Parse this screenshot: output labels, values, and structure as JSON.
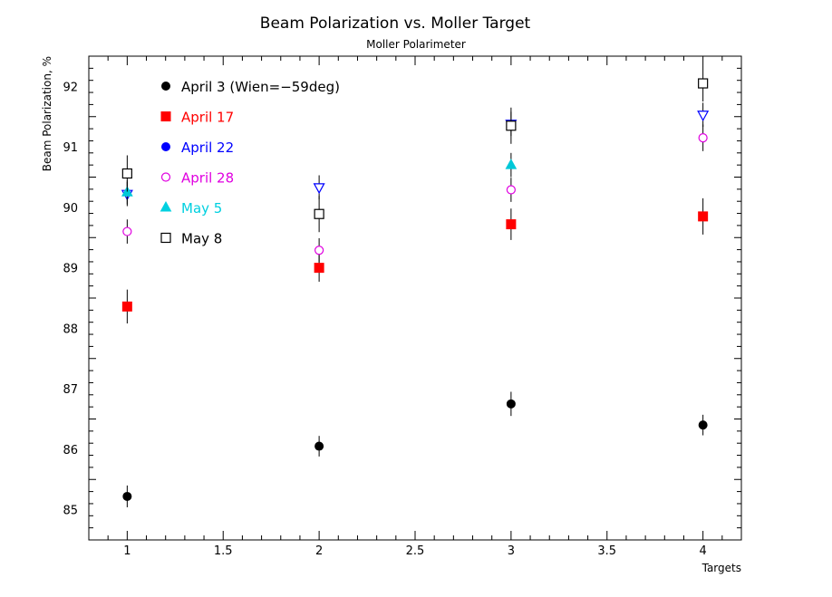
{
  "chart_data": {
    "type": "scatter",
    "title": "Beam Polarization vs. Moller Target",
    "subtitle": "Moller Polarimeter",
    "xlabel": "Targets",
    "ylabel": "Beam Polarization, %",
    "xlim": [
      0.8,
      4.2
    ],
    "ylim": [
      84.5,
      92.5
    ],
    "x_ticks": [
      "1",
      "1.5",
      "2",
      "2.5",
      "3",
      "3.5",
      "4"
    ],
    "x_tick_values": [
      1,
      1.5,
      2,
      2.5,
      3,
      3.5,
      4
    ],
    "y_ticks": [
      "85",
      "86",
      "87",
      "88",
      "89",
      "90",
      "91",
      "92"
    ],
    "y_tick_values": [
      85,
      86,
      87,
      88,
      89,
      90,
      91,
      92
    ],
    "grid": false,
    "legend_position": "top-left inside",
    "series": [
      {
        "name": "April 3 (Wien=−59deg)",
        "color": "#000000",
        "marker": "filled-circle",
        "points": [
          {
            "x": 1,
            "y": 85.22,
            "err": 0.18
          },
          {
            "x": 2,
            "y": 86.05,
            "err": 0.17
          },
          {
            "x": 3,
            "y": 86.75,
            "err": 0.2
          },
          {
            "x": 4,
            "y": 86.4,
            "err": 0.17
          }
        ]
      },
      {
        "name": "April 17",
        "color": "#ff0000",
        "marker": "filled-square",
        "points": [
          {
            "x": 1,
            "y": 88.36,
            "err": 0.28
          },
          {
            "x": 2,
            "y": 89.0,
            "err": 0.23
          },
          {
            "x": 3,
            "y": 89.72,
            "err": 0.26
          },
          {
            "x": 4,
            "y": 89.85,
            "err": 0.3
          }
        ]
      },
      {
        "name": "April 22",
        "color": "#0000ff",
        "marker": "open-triangle-down",
        "points": [
          {
            "x": 1,
            "y": 90.22,
            "err": 0.2
          },
          {
            "x": 2,
            "y": 90.33,
            "err": 0.2
          },
          {
            "x": 3,
            "y": 91.38,
            "err": 0.2
          },
          {
            "x": 4,
            "y": 91.53,
            "err": 0.2
          }
        ]
      },
      {
        "name": "April 28",
        "color": "#e000e0",
        "marker": "open-circle",
        "points": [
          {
            "x": 1,
            "y": 89.6,
            "err": 0.2
          },
          {
            "x": 2,
            "y": 89.29,
            "err": 0.2
          },
          {
            "x": 3,
            "y": 90.29,
            "err": 0.2
          },
          {
            "x": 4,
            "y": 91.15,
            "err": 0.22
          }
        ]
      },
      {
        "name": "May 5",
        "color": "#00c8d8",
        "marker": "filled-triangle-up",
        "points": [
          {
            "x": 1,
            "y": 90.25,
            "err": 0.2
          },
          {
            "x": 3,
            "y": 90.7,
            "err": 0.2
          }
        ]
      },
      {
        "name": "May 8",
        "color": "#000000",
        "marker": "open-square",
        "points": [
          {
            "x": 1,
            "y": 90.56,
            "err": 0.3
          },
          {
            "x": 2,
            "y": 89.89,
            "err": 0.3
          },
          {
            "x": 3,
            "y": 91.35,
            "err": 0.3
          },
          {
            "x": 4,
            "y": 92.05,
            "err": 0.3
          }
        ]
      }
    ],
    "legend": [
      {
        "label": "April 3 (Wien=−59deg)",
        "color": "#000000",
        "marker": "filled-circle"
      },
      {
        "label": "April 17",
        "color": "#ff0000",
        "marker": "filled-square"
      },
      {
        "label": "April 22",
        "color": "#0000ff",
        "marker": "filled-circle"
      },
      {
        "label": "April 28",
        "color": "#e000e0",
        "marker": "open-circle"
      },
      {
        "label": "May 5",
        "color": "#00d0e0",
        "marker": "filled-triangle-up"
      },
      {
        "label": "May 8",
        "color": "#000000",
        "marker": "open-square"
      }
    ]
  }
}
